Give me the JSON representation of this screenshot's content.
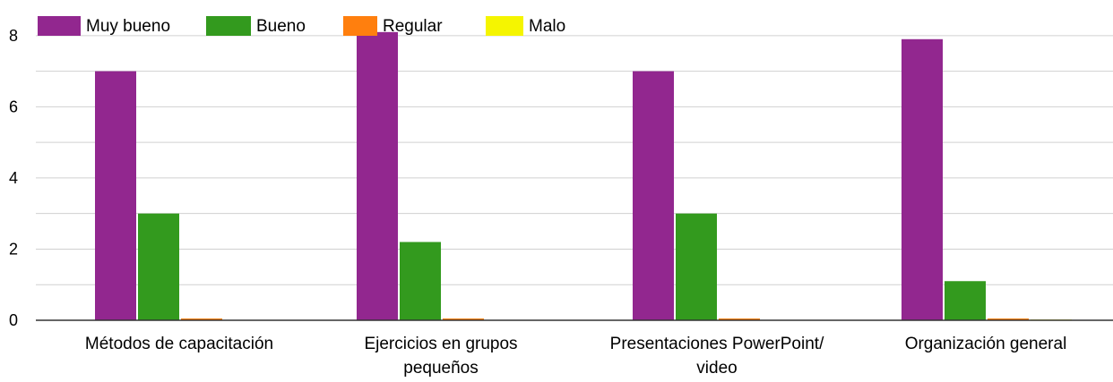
{
  "chart_data": {
    "type": "bar",
    "title": "",
    "xlabel": "",
    "ylabel": "",
    "ylim": [
      0,
      8
    ],
    "yticks": [
      0,
      2,
      4,
      6,
      8
    ],
    "grid": true,
    "legend_position": "top-left",
    "categories": [
      [
        "Métodos de capacitación"
      ],
      [
        "Ejercicios en grupos",
        "pequeños"
      ],
      [
        "Presentaciones PowerPoint/",
        "video"
      ],
      [
        "Organización general"
      ]
    ],
    "series": [
      {
        "name": "Muy bueno",
        "color": "#92278f",
        "values": [
          7,
          8.1,
          7,
          7.9
        ]
      },
      {
        "name": "Bueno",
        "color": "#339a1e",
        "values": [
          3,
          2.2,
          3,
          1.1
        ]
      },
      {
        "name": "Regular",
        "color": "#ff7f0e",
        "values": [
          0.05,
          0.05,
          0.05,
          0.05
        ]
      },
      {
        "name": "Malo",
        "color": "#f5f500",
        "values": [
          0,
          0,
          0,
          0.02
        ]
      }
    ]
  }
}
